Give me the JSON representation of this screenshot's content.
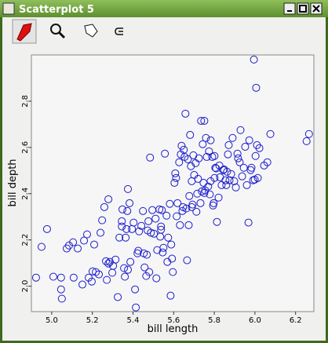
{
  "window": {
    "title": "Scatterplot 5"
  },
  "chart_data": {
    "type": "scatter",
    "xlabel": "bill length",
    "ylabel": "bill depth",
    "color": "#1c1ccc",
    "xlim": [
      4.9,
      6.29
    ],
    "ylim": [
      1.89,
      3.0
    ],
    "xticks": [
      {
        "value": 5,
        "label": "5.0"
      },
      5.2,
      5.4,
      5.6,
      5.8,
      {
        "value": 6,
        "label": "6.0"
      },
      6.2
    ],
    "yticks": [
      {
        "value": 2,
        "label": "2.0"
      },
      2.2,
      2.4,
      2.6,
      2.8
    ],
    "x": [
      4.923,
      4.95,
      4.977,
      5.008,
      5.046,
      5.046,
      5.05,
      5.074,
      5.085,
      5.105,
      5.108,
      5.128,
      5.151,
      5.159,
      5.174,
      5.182,
      5.197,
      5.201,
      5.209,
      5.217,
      5.232,
      5.24,
      5.248,
      5.259,
      5.267,
      5.271,
      5.279,
      5.279,
      5.286,
      5.298,
      5.302,
      5.314,
      5.325,
      5.333,
      5.345,
      5.345,
      5.348,
      5.356,
      5.36,
      5.364,
      5.368,
      5.372,
      5.375,
      5.375,
      5.383,
      5.387,
      5.395,
      5.403,
      5.41,
      5.414,
      5.422,
      5.426,
      5.43,
      5.441,
      5.449,
      5.453,
      5.457,
      5.465,
      5.468,
      5.472,
      5.476,
      5.48,
      5.484,
      5.488,
      5.495,
      5.503,
      5.511,
      5.515,
      5.519,
      5.53,
      5.534,
      5.538,
      5.538,
      5.542,
      5.546,
      5.55,
      5.557,
      5.565,
      5.569,
      5.573,
      5.581,
      5.585,
      5.588,
      5.592,
      5.596,
      5.604,
      5.608,
      5.612,
      5.615,
      5.619,
      5.627,
      5.631,
      5.635,
      5.639,
      5.643,
      5.646,
      5.65,
      5.654,
      5.658,
      5.662,
      5.666,
      5.67,
      5.674,
      5.677,
      5.681,
      5.685,
      5.689,
      5.689,
      5.693,
      5.697,
      5.701,
      5.708,
      5.712,
      5.716,
      5.72,
      5.724,
      5.732,
      5.735,
      5.739,
      5.743,
      5.747,
      5.751,
      5.751,
      5.755,
      5.759,
      5.763,
      5.77,
      5.774,
      5.778,
      5.782,
      5.782,
      5.79,
      5.794,
      5.797,
      5.801,
      5.801,
      5.805,
      5.809,
      5.813,
      5.821,
      5.825,
      5.828,
      5.836,
      5.844,
      5.848,
      5.855,
      5.859,
      5.863,
      5.867,
      5.871,
      5.875,
      5.883,
      5.89,
      5.898,
      5.906,
      5.914,
      5.917,
      5.925,
      5.929,
      5.937,
      5.945,
      5.952,
      5.96,
      5.968,
      5.972,
      5.979,
      5.983,
      5.991,
      5.995,
      5.999,
      6.003,
      6.006,
      6.01,
      6.014,
      6.022,
      6.045,
      6.061,
      6.076,
      6.254,
      6.266
    ],
    "values": [
      2.037,
      2.17,
      2.247,
      2.041,
      2.037,
      1.986,
      1.946,
      2.163,
      2.176,
      2.19,
      2.037,
      2.163,
      2.007,
      2.197,
      2.224,
      2.037,
      2.02,
      2.064,
      2.18,
      2.061,
      2.051,
      2.231,
      2.285,
      2.342,
      2.108,
      2.027,
      2.376,
      2.098,
      2.105,
      2.058,
      2.088,
      2.115,
      1.953,
      2.21,
      2.281,
      2.258,
      2.332,
      2.078,
      2.041,
      2.21,
      2.247,
      2.325,
      2.42,
      2.071,
      2.359,
      2.105,
      2.247,
      2.275,
      1.986,
      1.908,
      2.142,
      2.153,
      2.237,
      2.261,
      2.325,
      2.142,
      2.081,
      2.044,
      2.136,
      2.241,
      2.281,
      2.061,
      2.556,
      2.231,
      2.329,
      2.227,
      2.292,
      2.034,
      2.156,
      2.332,
      2.214,
      2.258,
      2.244,
      2.329,
      2.146,
      2.166,
      2.573,
      2.305,
      2.105,
      2.21,
      2.356,
      1.959,
      2.18,
      2.119,
      2.061,
      2.447,
      2.488,
      2.468,
      2.302,
      2.359,
      2.536,
      2.264,
      2.57,
      2.607,
      2.325,
      2.342,
      2.59,
      2.559,
      2.746,
      2.336,
      2.112,
      2.549,
      2.264,
      2.39,
      2.654,
      2.519,
      2.454,
      2.342,
      2.353,
      2.566,
      2.481,
      2.532,
      2.322,
      2.4,
      2.464,
      2.553,
      2.359,
      2.715,
      2.41,
      2.614,
      2.447,
      2.715,
      2.403,
      2.414,
      2.641,
      2.559,
      2.431,
      2.583,
      2.397,
      2.454,
      2.631,
      2.559,
      2.349,
      2.359,
      2.563,
      2.468,
      2.512,
      2.509,
      2.278,
      2.383,
      2.522,
      2.471,
      2.437,
      2.502,
      2.505,
      2.458,
      2.437,
      2.495,
      2.57,
      2.61,
      2.458,
      2.485,
      2.641,
      2.454,
      2.427,
      2.573,
      2.553,
      2.536,
      2.675,
      2.475,
      2.512,
      2.603,
      2.437,
      2.275,
      2.631,
      2.502,
      2.512,
      2.458,
      2.98,
      2.461,
      2.563,
      2.858,
      2.61,
      2.468,
      2.597,
      2.522,
      2.536,
      2.658,
      2.627,
      2.658
    ]
  }
}
